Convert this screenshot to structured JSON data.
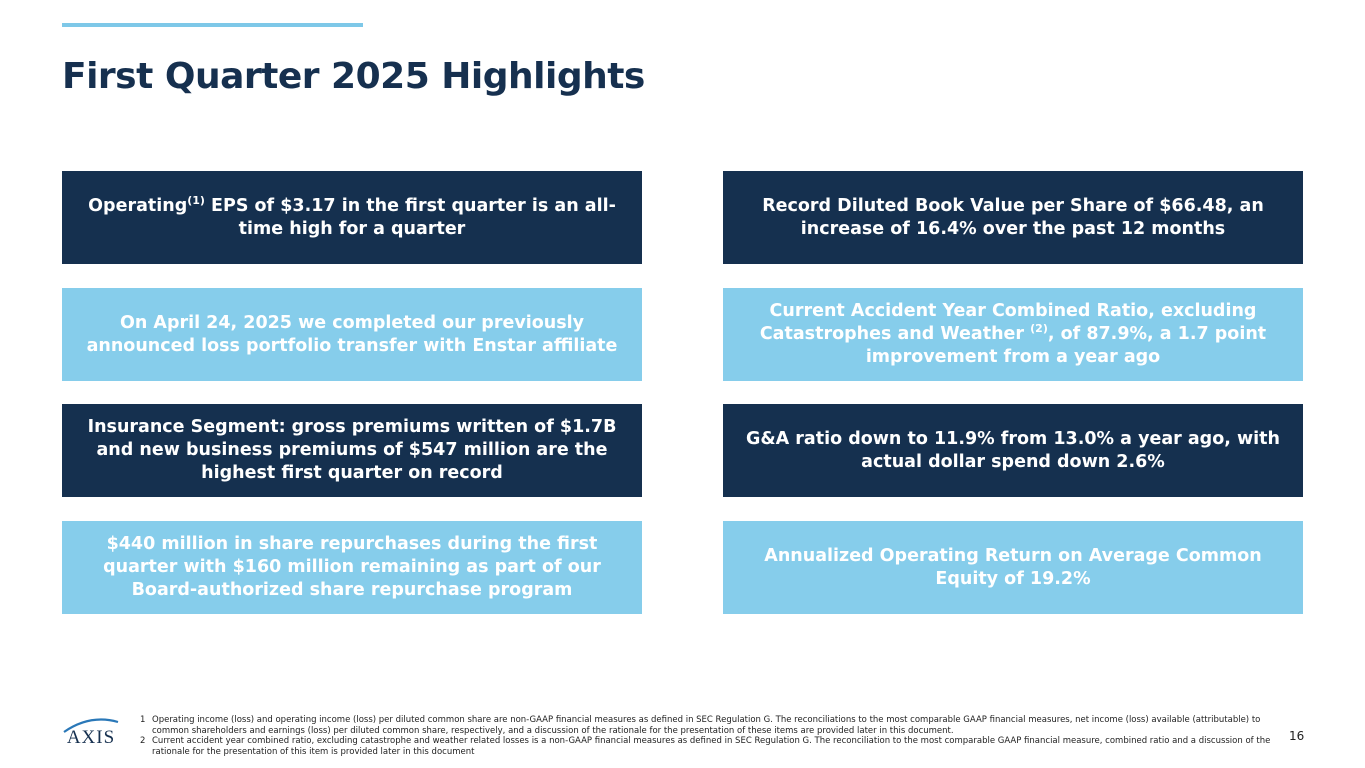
{
  "slide": {
    "title": "First Quarter 2025 Highlights",
    "page_number": "16"
  },
  "boxes": {
    "b1": {
      "pre": "Operating",
      "sup": "(1)",
      "post": " EPS of $3.17 in the first quarter is an all-time high for a quarter"
    },
    "b2": {
      "text": "Record Diluted Book Value per Share of $66.48, an increase of 16.4% over the past 12 months"
    },
    "b3": {
      "text": "On April 24, 2025 we completed our previously announced loss portfolio transfer with Enstar affiliate"
    },
    "b4": {
      "pre": "Current Accident Year Combined Ratio, excluding Catastrophes and Weather ",
      "sup": "(2)",
      "post": ", of 87.9%, a 1.7 point improvement from a year ago"
    },
    "b5": {
      "text": "Insurance Segment: gross premiums written of $1.7B and new business premiums of $547 million are the highest first quarter on record"
    },
    "b6": {
      "text": "G&A ratio down to 11.9% from 13.0% a year ago, with actual dollar spend down 2.6%"
    },
    "b7": {
      "text": "$440 million in share repurchases during the first quarter with $160 million remaining as part of our Board-authorized share repurchase program"
    },
    "b8": {
      "text": "Annualized Operating Return on Average Common Equity of 19.2%"
    }
  },
  "footnotes": [
    {
      "num": "1",
      "text": "Operating income (loss) and operating income (loss) per diluted common share are non-GAAP financial measures as defined in SEC Regulation G. The reconciliations to the most comparable GAAP financial measures, net income (loss) available (attributable) to common shareholders and earnings (loss) per diluted common share, respectively, and a discussion of the rationale for the presentation of these items are provided later in this document."
    },
    {
      "num": "2",
      "text": "Current accident year combined ratio, excluding catastrophe and weather related losses is a non-GAAP financial measures as defined in SEC Regulation G. The reconciliation to the most comparable GAAP financial measure, combined ratio and a discussion of the rationale for the presentation of this item is provided later in this document"
    }
  ],
  "logo": {
    "text": "AXIS"
  },
  "colors": {
    "navy": "#15304f",
    "light_blue": "#86cdeb",
    "accent": "#7ec8e8"
  }
}
